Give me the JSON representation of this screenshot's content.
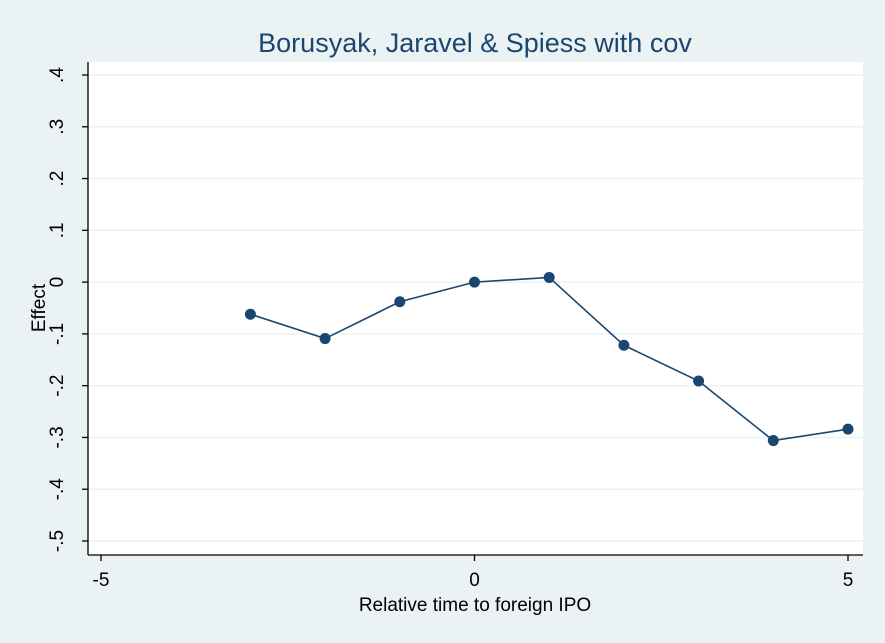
{
  "chart_data": {
    "type": "line",
    "title": "Borusyak, Jaravel & Spiess with cov",
    "xlabel": "Relative time to foreign IPO",
    "ylabel": "Effect",
    "xlim": [
      -5,
      5
    ],
    "ylim": [
      -0.5,
      0.4
    ],
    "xticks": [
      -5,
      0,
      5
    ],
    "xtick_labels": [
      "-5",
      "0",
      "5"
    ],
    "yticks": [
      -0.5,
      -0.4,
      -0.3,
      -0.2,
      -0.1,
      0,
      0.1,
      0.2,
      0.3,
      0.4
    ],
    "ytick_labels": [
      "-.5",
      "-.4",
      "-.3",
      "-.2",
      "-.1",
      "0",
      ".1",
      ".2",
      ".3",
      ".4"
    ],
    "grid": true,
    "series": [
      {
        "x": [
          -3,
          -2,
          -1,
          0,
          1,
          2,
          3,
          4,
          5
        ],
        "y": [
          -0.062,
          -0.109,
          -0.038,
          0,
          0.009,
          -0.122,
          -0.191,
          -0.306,
          -0.284
        ]
      }
    ],
    "colors": {
      "background": "#eaf2f3",
      "plot_area": "#ffffff",
      "series": "#1a476f",
      "title": "#1a476f"
    }
  }
}
